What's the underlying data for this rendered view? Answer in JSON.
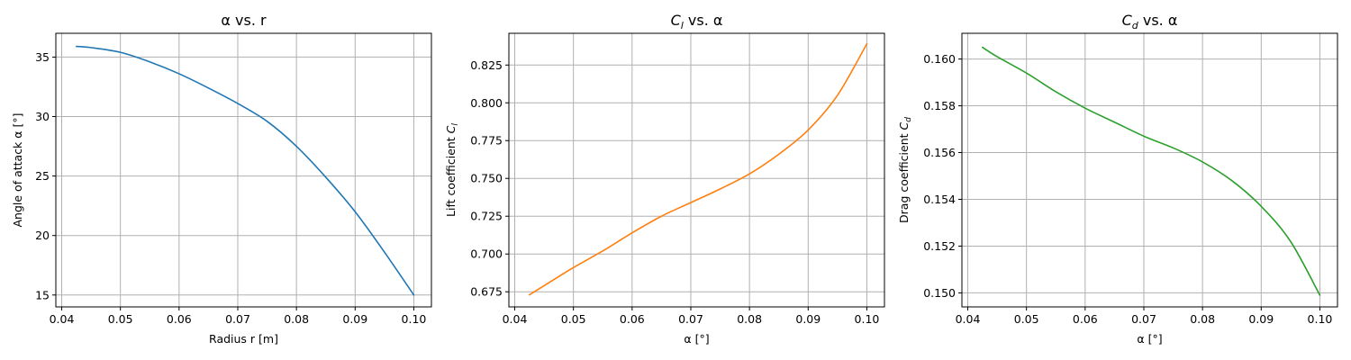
{
  "chart_data": [
    {
      "type": "line",
      "title": "α vs. r",
      "xlabel": "Radius r [m]",
      "ylabel": "Angle of attack α [°]",
      "xlim": [
        0.039,
        0.103
      ],
      "ylim": [
        14.0,
        37.0
      ],
      "xticks": [
        "0.04",
        "0.05",
        "0.06",
        "0.07",
        "0.08",
        "0.09",
        "0.10"
      ],
      "yticks": [
        "15",
        "20",
        "25",
        "30",
        "35"
      ],
      "grid": true,
      "color": "#1f77b4",
      "x": [
        0.0425,
        0.045,
        0.05,
        0.055,
        0.06,
        0.065,
        0.07,
        0.075,
        0.08,
        0.085,
        0.09,
        0.095,
        0.1
      ],
      "y": [
        35.9,
        35.8,
        35.4,
        34.6,
        33.6,
        32.4,
        31.1,
        29.6,
        27.5,
        24.9,
        22.0,
        18.6,
        15.0
      ]
    },
    {
      "type": "line",
      "title_parts": [
        "C",
        "l",
        " vs. α"
      ],
      "xlabel": "α [°]",
      "ylabel_parts": [
        "Lift coefficient ",
        "C",
        "l"
      ],
      "xlim": [
        0.039,
        0.103
      ],
      "ylim": [
        0.665,
        0.846
      ],
      "xticks": [
        "0.04",
        "0.05",
        "0.06",
        "0.07",
        "0.08",
        "0.09",
        "0.10"
      ],
      "yticks": [
        "0.675",
        "0.700",
        "0.725",
        "0.750",
        "0.775",
        "0.800",
        "0.825"
      ],
      "grid": true,
      "color": "#ff7f0e",
      "x": [
        0.0425,
        0.045,
        0.05,
        0.055,
        0.06,
        0.065,
        0.07,
        0.075,
        0.08,
        0.085,
        0.09,
        0.095,
        0.1
      ],
      "y": [
        0.673,
        0.679,
        0.691,
        0.702,
        0.714,
        0.725,
        0.734,
        0.743,
        0.753,
        0.766,
        0.782,
        0.805,
        0.839
      ]
    },
    {
      "type": "line",
      "title_parts": [
        "C",
        "d",
        " vs. α"
      ],
      "xlabel": "α [°]",
      "ylabel_parts": [
        "Drag coefficient ",
        "C",
        "d"
      ],
      "xlim": [
        0.039,
        0.103
      ],
      "ylim": [
        0.1494,
        0.1611
      ],
      "xticks": [
        "0.04",
        "0.05",
        "0.06",
        "0.07",
        "0.08",
        "0.09",
        "0.10"
      ],
      "yticks": [
        "0.150",
        "0.152",
        "0.154",
        "0.156",
        "0.158",
        "0.160"
      ],
      "grid": true,
      "color": "#2ca02c",
      "x": [
        0.0425,
        0.045,
        0.05,
        0.055,
        0.06,
        0.065,
        0.07,
        0.075,
        0.08,
        0.085,
        0.09,
        0.095,
        0.1
      ],
      "y": [
        0.1605,
        0.1601,
        0.1594,
        0.1586,
        0.1579,
        0.1573,
        0.1567,
        0.1562,
        0.1556,
        0.1548,
        0.1537,
        0.1522,
        0.1499
      ]
    }
  ]
}
